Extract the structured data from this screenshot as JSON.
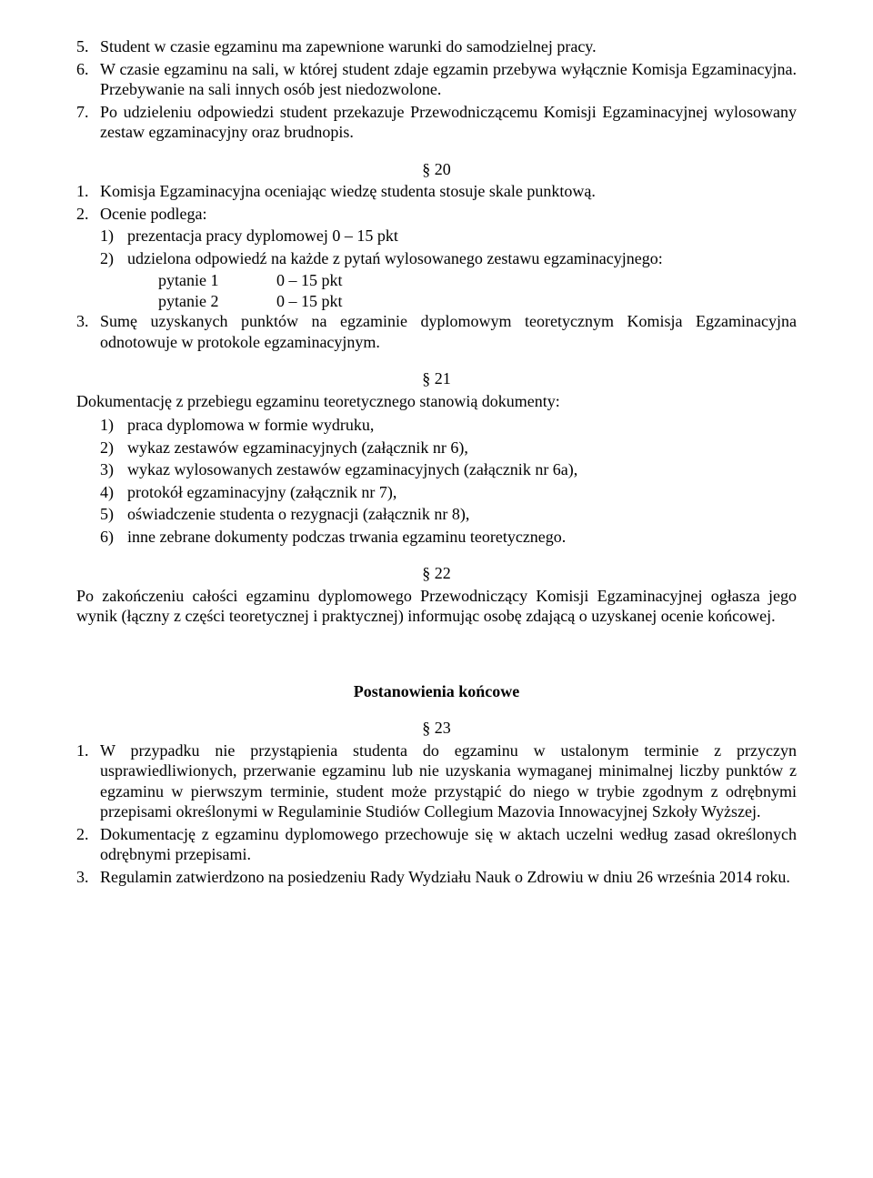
{
  "top_list": [
    {
      "n": "5.",
      "t": "Student w czasie egzaminu ma zapewnione warunki do samodzielnej pracy."
    },
    {
      "n": "6.",
      "t": "W czasie egzaminu na sali, w której student zdaje egzamin przebywa wyłącznie Komisja Egzaminacyjna. Przebywanie na sali innych osób jest niedozwolone."
    },
    {
      "n": "7.",
      "t": "Po udzieleniu odpowiedzi student przekazuje Przewodniczącemu Komisji Egzaminacyjnej wylosowany zestaw egzaminacyjny oraz brudnopis."
    }
  ],
  "s20": {
    "num": "§ 20",
    "item1": {
      "n": "1.",
      "t": "Komisja Egzaminacyjna oceniając wiedzę studenta stosuje skale punktową."
    },
    "item2": {
      "n": "2.",
      "t": "Ocenie podlega:"
    },
    "sub2": [
      {
        "n": "1)",
        "t": "prezentacja pracy dyplomowej       0 – 15 pkt"
      },
      {
        "n": "2)",
        "t": "udzielona odpowiedź na każde z pytań wylosowanego zestawu egzaminacyjnego:"
      }
    ],
    "rows": [
      {
        "a": "pytanie 1",
        "b": "0 – 15 pkt"
      },
      {
        "a": "pytanie 2",
        "b": "0 – 15 pkt"
      }
    ],
    "item3": {
      "n": "3.",
      "t": "Sumę uzyskanych punktów na egzaminie dyplomowym teoretycznym Komisja Egzaminacyjna odnotowuje w protokole egzaminacyjnym."
    }
  },
  "s21": {
    "num": "§ 21",
    "lead": "Dokumentację z przebiegu egzaminu teoretycznego stanowią dokumenty:",
    "items": [
      {
        "n": "1)",
        "t": "praca dyplomowa w formie wydruku,"
      },
      {
        "n": "2)",
        "t": "wykaz zestawów egzaminacyjnych (załącznik nr 6),"
      },
      {
        "n": "3)",
        "t": "wykaz wylosowanych zestawów egzaminacyjnych (załącznik nr 6a),"
      },
      {
        "n": "4)",
        "t": "protokół egzaminacyjny (załącznik nr 7),"
      },
      {
        "n": "5)",
        "t": "oświadczenie studenta o rezygnacji (załącznik nr 8),"
      },
      {
        "n": "6)",
        "t": "inne zebrane dokumenty podczas trwania egzaminu teoretycznego."
      }
    ]
  },
  "s22": {
    "num": "§ 22",
    "t": "Po zakończeniu całości egzaminu dyplomowego Przewodniczący Komisji Egzaminacyjnej ogłasza jego wynik (łączny z części teoretycznej i praktycznej) informując osobę zdającą o uzyskanej ocenie końcowej."
  },
  "final_heading": "Postanowienia końcowe",
  "s23": {
    "num": "§ 23",
    "items": [
      {
        "n": "1.",
        "t": "W przypadku nie przystąpienia studenta do egzaminu w ustalonym terminie z przyczyn usprawiedliwionych, przerwanie egzaminu lub nie uzyskania wymaganej minimalnej liczby punktów z egzaminu w pierwszym terminie, student może przystąpić do niego w trybie zgodnym z odrębnymi przepisami określonymi w Regulaminie Studiów Collegium Mazovia Innowacyjnej Szkoły Wyższej."
      },
      {
        "n": "2.",
        "t": "Dokumentację z egzaminu dyplomowego przechowuje się w aktach uczelni według zasad określonych odrębnymi przepisami."
      },
      {
        "n": "3.",
        "t": "Regulamin zatwierdzono na posiedzeniu Rady Wydziału Nauk o Zdrowiu w dniu 26 września  2014 roku."
      }
    ]
  }
}
